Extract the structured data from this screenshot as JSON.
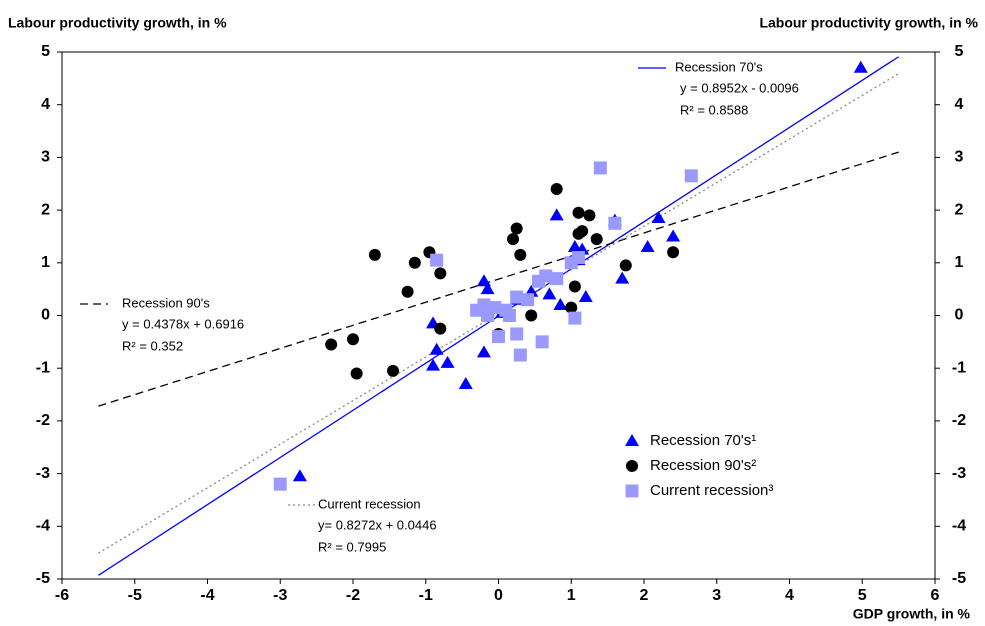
{
  "chart_data": {
    "type": "scatter",
    "y_label": "Labour productivity growth, in %",
    "y2_label": "Labour productivity growth, in %",
    "x_label": "GDP growth, in %",
    "xlim": [
      -6,
      6
    ],
    "xticks": [
      -6,
      -5,
      -4,
      -3,
      -2,
      -1,
      0,
      1,
      2,
      3,
      4,
      5,
      6
    ],
    "ylim": [
      -5,
      5
    ],
    "yticks": [
      -5,
      -4,
      -3,
      -2,
      -1,
      0,
      1,
      2,
      3,
      4,
      5
    ],
    "y2lim": [
      -5,
      5
    ],
    "y2ticks": [
      -5,
      -4,
      -3,
      -2,
      -1,
      0,
      1,
      2,
      3,
      4,
      5
    ],
    "series": [
      {
        "name": "Recession 70's¹",
        "color": "#0000ff",
        "marker": "triangle",
        "x": [
          4.98,
          -2.73,
          2.2,
          2.4,
          2.05,
          1.6,
          1.7,
          1.2,
          1.15,
          1.05,
          1.1,
          0.8,
          0.85,
          0.7,
          0.45,
          -0.2,
          -0.15,
          -0.2,
          -0.9,
          -0.9,
          -0.85,
          -0.7,
          -0.45,
          0.05,
          0.25
        ],
        "values": [
          4.7,
          -3.05,
          1.85,
          1.5,
          1.3,
          1.8,
          0.7,
          0.35,
          1.25,
          1.3,
          1.05,
          1.9,
          0.2,
          0.4,
          0.45,
          0.65,
          0.5,
          -0.7,
          -0.15,
          -0.95,
          -0.65,
          -0.9,
          -1.3,
          0.05,
          0.3
        ]
      },
      {
        "name": "Recession 90's²",
        "color": "#000000",
        "marker": "circle",
        "x": [
          -2.3,
          -2.0,
          -1.95,
          -1.7,
          -1.45,
          -1.25,
          -1.15,
          -0.95,
          -0.8,
          -0.8,
          0.0,
          0.2,
          0.25,
          0.3,
          0.45,
          0.8,
          1.0,
          1.1,
          1.1,
          1.15,
          1.05,
          1.25,
          1.35,
          1.75,
          2.4
        ],
        "values": [
          -0.55,
          -0.45,
          -1.1,
          1.15,
          -1.05,
          0.45,
          1.0,
          1.2,
          0.8,
          -0.25,
          -0.35,
          1.45,
          1.65,
          1.15,
          0.0,
          2.4,
          0.15,
          1.95,
          1.55,
          1.6,
          0.55,
          1.9,
          1.45,
          0.95,
          1.2
        ]
      },
      {
        "name": "Current recession³",
        "color": "#9999ff",
        "marker": "square",
        "x": [
          -3.0,
          -0.85,
          -0.3,
          -0.2,
          -0.15,
          -0.05,
          0.0,
          0.15,
          0.25,
          0.3,
          0.25,
          0.4,
          0.55,
          0.65,
          0.6,
          0.8,
          1.0,
          1.05,
          1.1,
          1.4,
          1.6,
          2.65,
          0.1
        ],
        "values": [
          -3.2,
          1.05,
          0.1,
          0.2,
          0.0,
          0.15,
          -0.4,
          0.0,
          -0.35,
          -0.75,
          0.35,
          0.3,
          0.65,
          0.75,
          -0.5,
          0.7,
          1.0,
          -0.05,
          1.1,
          2.8,
          1.75,
          2.65,
          0.1
        ]
      }
    ],
    "trendlines": [
      {
        "name": "Recession 70's",
        "equation": "y = 0.8952x - 0.0096",
        "r2": "R² = 0.8588",
        "color": "#0000ff",
        "dash": "none",
        "x": [
          -5.5,
          5.5
        ],
        "values": [
          -4.93,
          4.91
        ]
      },
      {
        "name": "Recession 90's",
        "equation": "y = 0.4378x + 0.6916",
        "r2": "R² = 0.352",
        "color": "#000000",
        "dash": "8 5",
        "x": [
          -5.5,
          5.5
        ],
        "values": [
          -1.72,
          3.1
        ]
      },
      {
        "name": "Current recession",
        "equation": "y= 0.8272x + 0.0446",
        "r2": "R² = 0.7995",
        "color": "#888888",
        "dash": "2 3",
        "x": [
          -5.5,
          5.5
        ],
        "values": [
          -4.51,
          4.59
        ]
      }
    ]
  }
}
